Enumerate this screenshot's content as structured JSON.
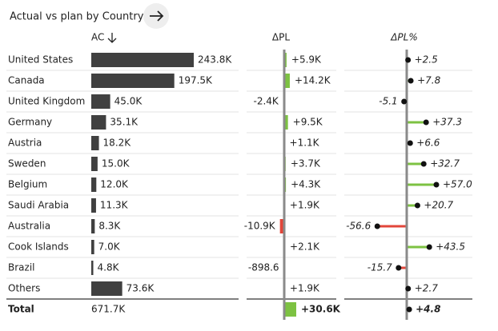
{
  "title": "Actual vs plan by Country",
  "chart_data": [
    {
      "type": "bar",
      "title": "AC",
      "categories": [
        "United States",
        "Canada",
        "United Kingdom",
        "Germany",
        "Austria",
        "Sweden",
        "Belgium",
        "Saudi Arabia",
        "Australia",
        "Cook Islands",
        "Brazil",
        "Others"
      ],
      "values": [
        243800,
        197500,
        45000,
        35100,
        18200,
        15000,
        12000,
        11300,
        8300,
        7000,
        4800,
        73600
      ],
      "value_labels": [
        "243.8K",
        "197.5K",
        "45.0K",
        "35.1K",
        "18.2K",
        "15.0K",
        "12.0K",
        "11.3K",
        "8.3K",
        "7.0K",
        "4.8K",
        "73.6K"
      ],
      "total_category": "Total",
      "total": 671700,
      "total_label": "671.7K",
      "color": "#404040"
    },
    {
      "type": "variance",
      "title": "ΔPL",
      "values": [
        5900,
        14200,
        -2400,
        9500,
        1100,
        3700,
        4300,
        1900,
        -10900,
        2100,
        -898.6,
        1900
      ],
      "value_labels": [
        "+5.9K",
        "+14.2K",
        "-2.4K",
        "+9.5K",
        "+1.1K",
        "+3.7K",
        "+4.3K",
        "+1.9K",
        "-10.9K",
        "+2.1K",
        "-898.6",
        "+1.9K"
      ],
      "total": 30600,
      "total_label": "+30.6K",
      "positive_color": "#7dc242",
      "negative_color": "#e2463a"
    },
    {
      "type": "lollipop",
      "title": "ΔPL%",
      "values": [
        2.5,
        7.8,
        -5.1,
        37.3,
        6.6,
        32.7,
        57.0,
        20.7,
        -56.6,
        43.5,
        -15.7,
        2.7
      ],
      "value_labels": [
        "+2.5",
        "+7.8",
        "-5.1",
        "+37.3",
        "+6.6",
        "+32.7",
        "+57.0",
        "+20.7",
        "-56.6",
        "+43.5",
        "-15.7",
        "+2.7"
      ],
      "total": 4.8,
      "total_label": "+4.8",
      "positive_color": "#7dc242",
      "negative_color": "#e2463a"
    }
  ]
}
